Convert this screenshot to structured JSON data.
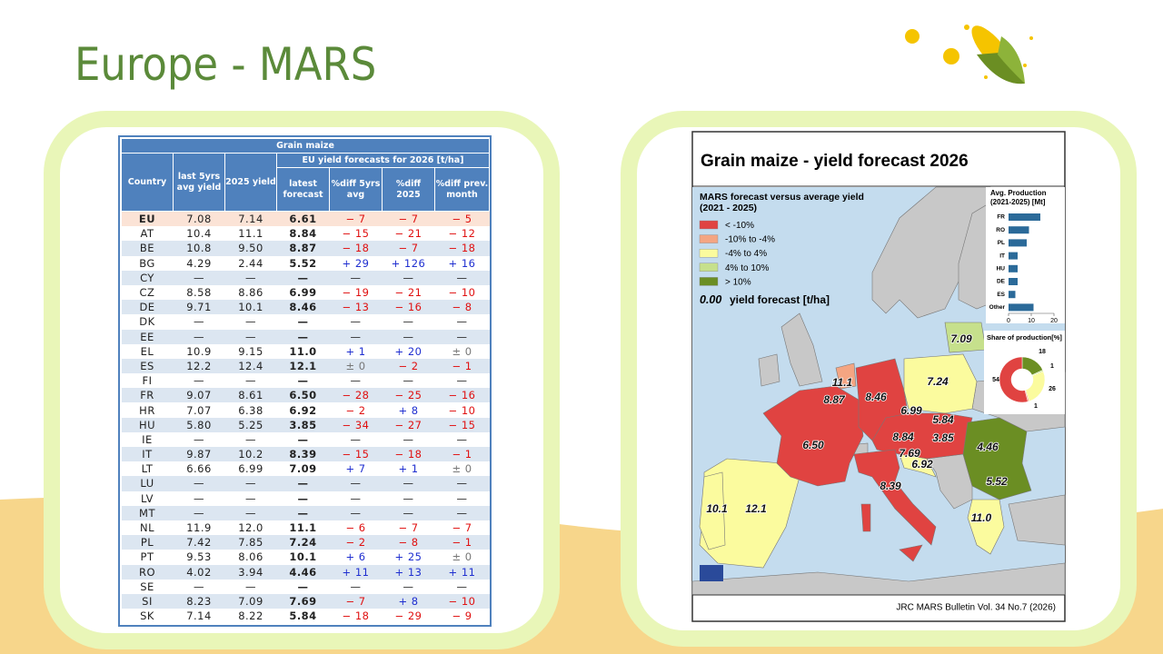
{
  "title": "Europe - MARS",
  "table": {
    "caption": "Grain maize",
    "group_header": "EU yield forecasts for 2026 [t/ha]",
    "columns": [
      "Country",
      "last 5yrs avg yield",
      "2025 yield",
      "latest forecast",
      "%diff 5yrs avg",
      "%diff 2025",
      "%diff prev. month"
    ],
    "rows": [
      [
        "EU",
        "7.08",
        "7.14",
        "6.61",
        "− 7",
        "− 7",
        "− 5"
      ],
      [
        "AT",
        "10.4",
        "11.1",
        "8.84",
        "− 15",
        "− 21",
        "− 12"
      ],
      [
        "BE",
        "10.8",
        "9.50",
        "8.87",
        "− 18",
        "− 7",
        "− 18"
      ],
      [
        "BG",
        "4.29",
        "2.44",
        "5.52",
        "+ 29",
        "+ 126",
        "+ 16"
      ],
      [
        "CY",
        "—",
        "—",
        "—",
        "—",
        "—",
        "—"
      ],
      [
        "CZ",
        "8.58",
        "8.86",
        "6.99",
        "− 19",
        "− 21",
        "− 10"
      ],
      [
        "DE",
        "9.71",
        "10.1",
        "8.46",
        "− 13",
        "− 16",
        "− 8"
      ],
      [
        "DK",
        "—",
        "—",
        "—",
        "—",
        "—",
        "—"
      ],
      [
        "EE",
        "—",
        "—",
        "—",
        "—",
        "—",
        "—"
      ],
      [
        "EL",
        "10.9",
        "9.15",
        "11.0",
        "+ 1",
        "+ 20",
        "± 0"
      ],
      [
        "ES",
        "12.2",
        "12.4",
        "12.1",
        "± 0",
        "− 2",
        "− 1"
      ],
      [
        "FI",
        "—",
        "—",
        "—",
        "—",
        "—",
        "—"
      ],
      [
        "FR",
        "9.07",
        "8.61",
        "6.50",
        "− 28",
        "− 25",
        "− 16"
      ],
      [
        "HR",
        "7.07",
        "6.38",
        "6.92",
        "− 2",
        "+ 8",
        "− 10"
      ],
      [
        "HU",
        "5.80",
        "5.25",
        "3.85",
        "− 34",
        "− 27",
        "− 15"
      ],
      [
        "IE",
        "—",
        "—",
        "—",
        "—",
        "—",
        "—"
      ],
      [
        "IT",
        "9.87",
        "10.2",
        "8.39",
        "− 15",
        "− 18",
        "− 1"
      ],
      [
        "LT",
        "6.66",
        "6.99",
        "7.09",
        "+ 7",
        "+ 1",
        "± 0"
      ],
      [
        "LU",
        "—",
        "—",
        "—",
        "—",
        "—",
        "—"
      ],
      [
        "LV",
        "—",
        "—",
        "—",
        "—",
        "—",
        "—"
      ],
      [
        "MT",
        "—",
        "—",
        "—",
        "—",
        "—",
        "—"
      ],
      [
        "NL",
        "11.9",
        "12.0",
        "11.1",
        "− 6",
        "− 7",
        "− 7"
      ],
      [
        "PL",
        "7.42",
        "7.85",
        "7.24",
        "− 2",
        "− 8",
        "− 1"
      ],
      [
        "PT",
        "9.53",
        "8.06",
        "10.1",
        "+ 6",
        "+ 25",
        "± 0"
      ],
      [
        "RO",
        "4.02",
        "3.94",
        "4.46",
        "+ 11",
        "+ 13",
        "+ 11"
      ],
      [
        "SE",
        "—",
        "—",
        "—",
        "—",
        "—",
        "—"
      ],
      [
        "SI",
        "8.23",
        "7.09",
        "7.69",
        "− 7",
        "+ 8",
        "− 10"
      ],
      [
        "SK",
        "7.14",
        "8.22",
        "5.84",
        "− 18",
        "− 29",
        "− 9"
      ]
    ]
  },
  "map": {
    "title": "Grain maize - yield forecast 2026",
    "legend": {
      "title_lines": [
        "MARS forecast versus average yield",
        "(2021 - 2025)"
      ],
      "items": [
        {
          "label": "< -10%",
          "color": "#e04341"
        },
        {
          "label": "-10% to -4%",
          "color": "#f4a582"
        },
        {
          "label": "-4% to 4%",
          "color": "#fbfb9e"
        },
        {
          "label": "4% to 10%",
          "color": "#c6e08c"
        },
        {
          "label": "> 10%",
          "color": "#6b8e23"
        }
      ],
      "sample_value": "0.00",
      "sample_text": "yield forecast [t/ha]"
    },
    "labels": [
      "11.1",
      "8.87",
      "8.46",
      "7.24",
      "7.09",
      "6.99",
      "5.84",
      "8.84",
      "3.85",
      "4.46",
      "6.50",
      "7.69",
      "6.92",
      "5.52",
      "8.39",
      "10.1",
      "12.1",
      "11.0"
    ],
    "production": {
      "type": "bar",
      "title_lines": [
        "Avg. Production",
        "(2021-2025) [Mt]"
      ],
      "categories": [
        "FR",
        "RO",
        "PL",
        "IT",
        "HU",
        "DE",
        "ES",
        "Other"
      ],
      "values": [
        14,
        9,
        8,
        4,
        4,
        4,
        3,
        11
      ],
      "color": "#2b6a99",
      "xlim": [
        0,
        20
      ],
      "xticks": [
        0,
        10,
        20
      ]
    },
    "share": {
      "type": "pie",
      "title": "Share of production[%]",
      "values": [
        18,
        1,
        26,
        1,
        54
      ],
      "colors": [
        "#6b8e23",
        "#c6e08c",
        "#fbfb9e",
        "#f4a582",
        "#e04341"
      ]
    },
    "source": "JRC MARS Bulletin Vol. 34 No.7 (2026)"
  }
}
